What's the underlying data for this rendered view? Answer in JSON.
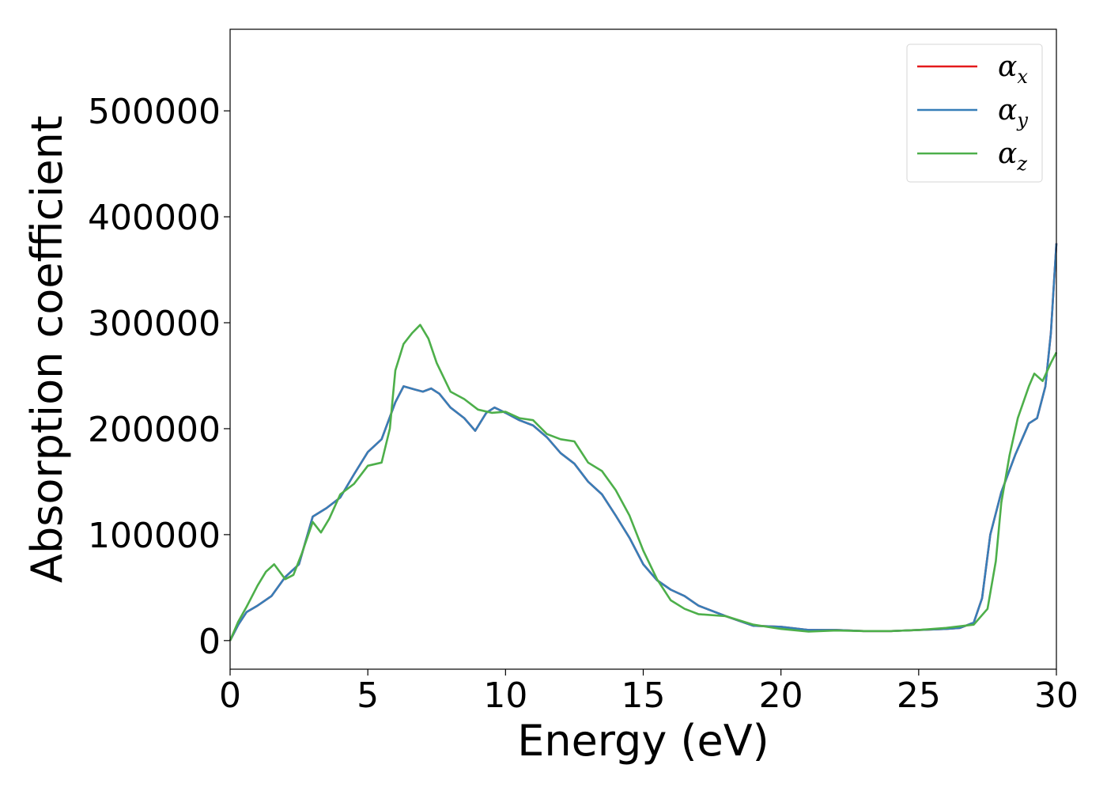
{
  "chart_data": {
    "type": "line",
    "title": "",
    "xlabel": "Energy (eV)",
    "ylabel": "Absorption coefficient",
    "xlim": [
      0,
      30
    ],
    "ylim": [
      -27000,
      577000
    ],
    "xticks": [
      0,
      5,
      10,
      15,
      20,
      25,
      30
    ],
    "yticks": [
      0,
      100000,
      200000,
      300000,
      400000,
      500000
    ],
    "grid": false,
    "legend_position": "top-right",
    "series": [
      {
        "name": "α_x",
        "legend_base": "α",
        "legend_sub": "x",
        "color": "#e41a1c",
        "x": [
          0,
          0.3,
          0.6,
          1.0,
          1.5,
          2.0,
          2.5,
          3.0,
          3.5,
          4.0,
          4.5,
          5.0,
          5.5,
          6.0,
          6.3,
          6.7,
          7.0,
          7.3,
          7.6,
          8.0,
          8.5,
          8.9,
          9.3,
          9.6,
          10.0,
          10.5,
          11.0,
          11.5,
          12.0,
          12.5,
          13.0,
          13.5,
          14.0,
          14.5,
          15.0,
          15.5,
          16.0,
          16.5,
          17.0,
          18.0,
          19.0,
          20.0,
          21.0,
          22.0,
          23.0,
          24.0,
          25.0,
          26.0,
          26.5,
          27.0,
          27.3,
          27.6,
          28.0,
          28.5,
          29.0,
          29.3,
          29.6,
          29.8,
          30.0
        ],
        "y": [
          0,
          15000,
          27000,
          33000,
          42000,
          60000,
          72000,
          117000,
          125000,
          135000,
          157000,
          178000,
          190000,
          225000,
          240000,
          237000,
          235000,
          238000,
          233000,
          220000,
          210000,
          198000,
          215000,
          220000,
          215000,
          208000,
          203000,
          192000,
          177000,
          167000,
          150000,
          138000,
          118000,
          97000,
          72000,
          57000,
          48000,
          42000,
          33000,
          23000,
          14000,
          13000,
          10000,
          10000,
          9000,
          9000,
          10000,
          11000,
          12000,
          17000,
          40000,
          100000,
          140000,
          175000,
          205000,
          210000,
          240000,
          290000,
          375000
        ]
      },
      {
        "name": "α_y",
        "legend_base": "α",
        "legend_sub": "y",
        "color": "#377eb8",
        "x": [
          0,
          0.3,
          0.6,
          1.0,
          1.5,
          2.0,
          2.5,
          3.0,
          3.5,
          4.0,
          4.5,
          5.0,
          5.5,
          6.0,
          6.3,
          6.7,
          7.0,
          7.3,
          7.6,
          8.0,
          8.5,
          8.9,
          9.3,
          9.6,
          10.0,
          10.5,
          11.0,
          11.5,
          12.0,
          12.5,
          13.0,
          13.5,
          14.0,
          14.5,
          15.0,
          15.5,
          16.0,
          16.5,
          17.0,
          18.0,
          19.0,
          20.0,
          21.0,
          22.0,
          23.0,
          24.0,
          25.0,
          26.0,
          26.5,
          27.0,
          27.3,
          27.6,
          28.0,
          28.5,
          29.0,
          29.3,
          29.6,
          29.8,
          30.0
        ],
        "y": [
          0,
          15000,
          27000,
          33000,
          42000,
          60000,
          72000,
          117000,
          125000,
          135000,
          157000,
          178000,
          190000,
          225000,
          240000,
          237000,
          235000,
          238000,
          233000,
          220000,
          210000,
          198000,
          215000,
          220000,
          215000,
          208000,
          203000,
          192000,
          177000,
          167000,
          150000,
          138000,
          118000,
          97000,
          72000,
          57000,
          48000,
          42000,
          33000,
          23000,
          14000,
          13000,
          10000,
          10000,
          9000,
          9000,
          10000,
          11000,
          12000,
          17000,
          40000,
          100000,
          140000,
          175000,
          205000,
          210000,
          240000,
          290000,
          375000
        ]
      },
      {
        "name": "α_z",
        "legend_base": "α",
        "legend_sub": "z",
        "color": "#4daf4a",
        "x": [
          0,
          0.3,
          0.6,
          1.0,
          1.3,
          1.6,
          2.0,
          2.3,
          2.6,
          3.0,
          3.3,
          3.6,
          4.0,
          4.5,
          5.0,
          5.5,
          5.8,
          6.0,
          6.3,
          6.6,
          6.9,
          7.2,
          7.5,
          8.0,
          8.5,
          9.0,
          9.5,
          10.0,
          10.5,
          11.0,
          11.5,
          12.0,
          12.5,
          13.0,
          13.5,
          14.0,
          14.5,
          15.0,
          15.5,
          16.0,
          16.5,
          17.0,
          18.0,
          19.0,
          20.0,
          21.0,
          22.0,
          23.0,
          24.0,
          25.0,
          26.0,
          27.0,
          27.5,
          27.8,
          28.0,
          28.3,
          28.6,
          29.0,
          29.2,
          29.5,
          29.8,
          30.0
        ],
        "y": [
          0,
          18000,
          32000,
          52000,
          65000,
          72000,
          58000,
          62000,
          82000,
          112000,
          102000,
          115000,
          138000,
          148000,
          165000,
          168000,
          200000,
          255000,
          280000,
          290000,
          298000,
          285000,
          262000,
          235000,
          228000,
          218000,
          215000,
          216000,
          210000,
          208000,
          195000,
          190000,
          188000,
          168000,
          160000,
          142000,
          118000,
          85000,
          58000,
          38000,
          30000,
          25000,
          23000,
          15000,
          11000,
          8500,
          9500,
          9000,
          9000,
          10000,
          12000,
          15000,
          30000,
          75000,
          130000,
          175000,
          210000,
          240000,
          252000,
          245000,
          262000,
          272000
        ]
      }
    ]
  }
}
